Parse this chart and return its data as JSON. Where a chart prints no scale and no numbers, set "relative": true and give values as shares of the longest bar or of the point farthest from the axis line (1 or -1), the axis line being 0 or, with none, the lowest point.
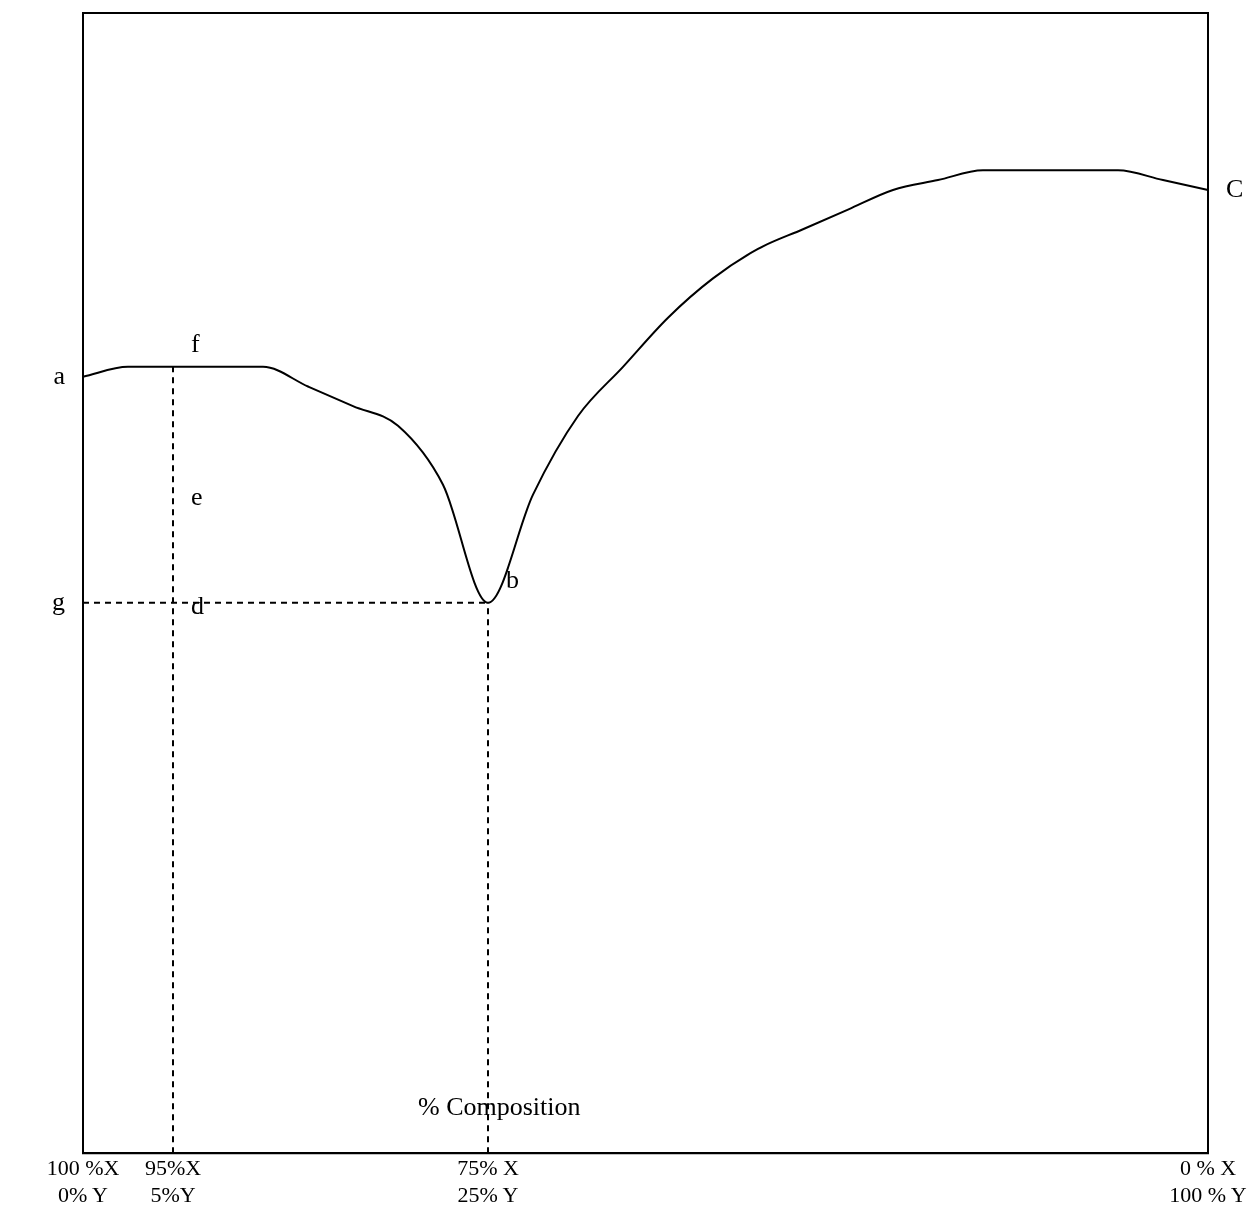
{
  "chart_data": {
    "type": "line",
    "relative": true,
    "xlabel": "% Composition",
    "categories": [
      "100 %X\n0% Y",
      null,
      "95%X\n5%Y",
      null,
      null,
      null,
      null,
      null,
      null,
      "75% X\n25% Y",
      null,
      null,
      null,
      null,
      null,
      null,
      null,
      null,
      null,
      null,
      null,
      null,
      null,
      null,
      null,
      "0 % X\n100 % Y"
    ],
    "grid": false,
    "legend": false,
    "series": [
      {
        "color": "#000000",
        "line_style": "solid",
        "values": [
          0.79,
          0.8,
          0.8,
          0.8,
          0.8,
          0.78,
          0.76,
          0.74,
          0.68,
          0.56,
          0.67,
          0.75,
          0.8,
          0.85,
          0.89,
          0.92,
          0.94,
          0.96,
          0.98,
          0.99,
          1.0,
          1.0,
          1.0,
          1.0,
          0.99,
          0.98
        ]
      },
      {
        "color": "#000000",
        "line_style": "dashed",
        "values": [
          0.56,
          0.56,
          0.56,
          0.56,
          0.56,
          0.56,
          0.56,
          0.56,
          0.56,
          0.56,
          null,
          null,
          null,
          null,
          null,
          null,
          null,
          null,
          null,
          null,
          null,
          null,
          null,
          null,
          null,
          null
        ]
      }
    ],
    "ref_lines": [
      {
        "axis": "x",
        "value": "95%X\n5%Y",
        "line_style": "dashed",
        "color": "#000000"
      },
      {
        "axis": "x",
        "value": "75% X\n25% Y",
        "line_style": "dashed",
        "color": "#000000"
      }
    ],
    "annotations": [
      {
        "text": "a",
        "x": "100 %X\n0% Y",
        "y": 0.79
      },
      {
        "text": "f",
        "x": "95%X\n5%Y",
        "y": 0.8
      },
      {
        "text": "e",
        "x": "95%X\n5%Y",
        "y": 0.67
      },
      {
        "text": "d",
        "x": "95%X\n5%Y",
        "y": 0.56
      },
      {
        "text": "g",
        "x": "100 %X\n0% Y",
        "y": 0.56
      },
      {
        "text": "b",
        "x": "75% X\n25% Y",
        "y": 0.56
      },
      {
        "text": "C",
        "x": "0 % X\n100 % Y",
        "y": 0.98
      }
    ]
  }
}
